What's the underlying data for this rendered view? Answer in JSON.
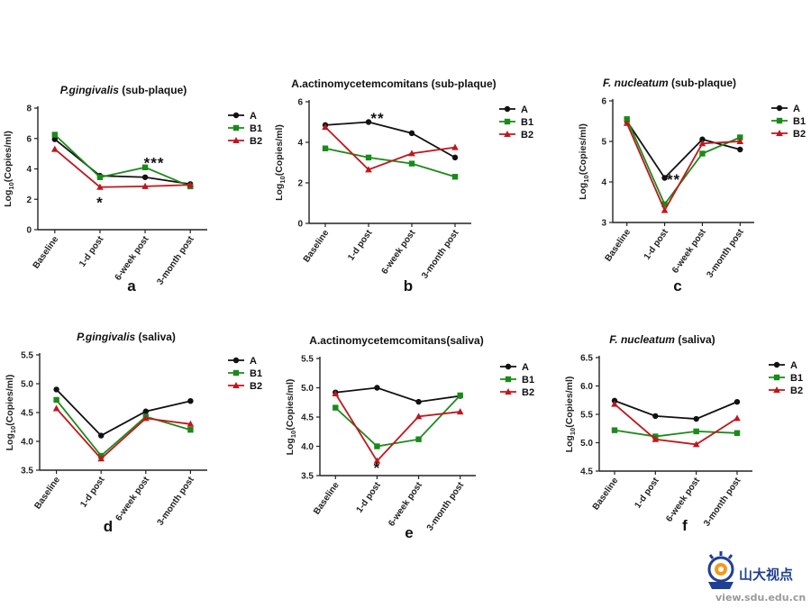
{
  "figure": {
    "legend_labels": [
      "A",
      "B1",
      "B2"
    ],
    "series_colors": {
      "A": "#111111",
      "B1": "#1a8a1a",
      "B2": "#c0161c"
    },
    "ylabel": "Log10(Copies/ml)",
    "ylabel_main": "Log",
    "ylabel_sub": "10",
    "ylabel_rest": "(Copies/ml)",
    "watermark": {
      "text": "山大视点",
      "url": "view.sdu.edu.cn"
    }
  },
  "chart_data": [
    {
      "type": "line",
      "panel_letter": "a",
      "title_italic": "P.gingivalis",
      "title_rest": " (sub-plaque)",
      "categories": [
        "Baseline",
        "1-d post",
        "6-week post",
        "3-month post"
      ],
      "ylim": [
        0,
        8
      ],
      "yticks": [
        "0",
        "2",
        "4",
        "6",
        "8"
      ],
      "series": [
        {
          "name": "A",
          "values": [
            5.95,
            3.55,
            3.45,
            3.0
          ]
        },
        {
          "name": "B1",
          "values": [
            6.25,
            3.45,
            4.1,
            2.85
          ]
        },
        {
          "name": "B2",
          "values": [
            5.3,
            2.8,
            2.85,
            2.95
          ]
        }
      ],
      "annotations": [
        {
          "text": "***",
          "category": "6-week post",
          "value": 4.35
        },
        {
          "text": "*",
          "category": "1-d post",
          "value": 1.75
        }
      ]
    },
    {
      "type": "line",
      "panel_letter": "b",
      "title_italic": "",
      "title_rest": "A.actinomycetemcomitans (sub-plaque)",
      "categories": [
        "Baseline",
        "1-d post",
        "6-week post",
        "3-month post"
      ],
      "ylim": [
        0,
        6
      ],
      "yticks": [
        "0",
        "2",
        "4",
        "6"
      ],
      "series": [
        {
          "name": "A",
          "values": [
            4.85,
            5.0,
            4.45,
            3.25
          ]
        },
        {
          "name": "B1",
          "values": [
            3.7,
            3.25,
            2.95,
            2.3
          ]
        },
        {
          "name": "B2",
          "values": [
            4.75,
            2.65,
            3.45,
            3.75
          ]
        }
      ],
      "annotations": [
        {
          "text": "**",
          "category": "1-d post",
          "value": 5.15
        }
      ]
    },
    {
      "type": "line",
      "panel_letter": "c",
      "title_italic": "F. nucleatum",
      "title_rest": " (sub-plaque)",
      "categories": [
        "Baseline",
        "1-d post",
        "6-week post",
        "3-month post"
      ],
      "ylim": [
        3,
        6
      ],
      "yticks": [
        "3",
        "4",
        "5",
        "6"
      ],
      "series": [
        {
          "name": "A",
          "values": [
            5.5,
            4.1,
            5.05,
            4.8
          ]
        },
        {
          "name": "B1",
          "values": [
            5.55,
            3.45,
            4.7,
            5.1
          ]
        },
        {
          "name": "B2",
          "values": [
            5.45,
            3.3,
            4.95,
            5.0
          ]
        }
      ],
      "annotations": [
        {
          "text": "**",
          "category": "1-d post",
          "value": 4.05
        }
      ]
    },
    {
      "type": "line",
      "panel_letter": "d",
      "title_italic": "P.gingivalis",
      "title_rest": " (saliva)",
      "categories": [
        "Baseline",
        "1-d post",
        "6-week post",
        "3-month post"
      ],
      "ylim": [
        3.5,
        5.5
      ],
      "yticks": [
        "3.5",
        "4.0",
        "4.5",
        "5.0",
        "5.5"
      ],
      "series": [
        {
          "name": "A",
          "values": [
            4.9,
            4.1,
            4.52,
            4.7
          ]
        },
        {
          "name": "B1",
          "values": [
            4.72,
            3.75,
            4.43,
            4.2
          ]
        },
        {
          "name": "B2",
          "values": [
            4.57,
            3.7,
            4.4,
            4.3
          ]
        }
      ],
      "annotations": []
    },
    {
      "type": "line",
      "panel_letter": "e",
      "title_italic": "",
      "title_rest": "A.actinomycetemcomitans(saliva)",
      "categories": [
        "Baseline",
        "1-d post",
        "6-week post",
        "3-month post"
      ],
      "ylim": [
        3.5,
        5.5
      ],
      "yticks": [
        "3.5",
        "4.0",
        "4.5",
        "5.0",
        "5.5"
      ],
      "series": [
        {
          "name": "A",
          "values": [
            4.92,
            5.0,
            4.76,
            4.86
          ]
        },
        {
          "name": "B1",
          "values": [
            4.66,
            4.0,
            4.12,
            4.87
          ]
        },
        {
          "name": "B2",
          "values": [
            4.9,
            3.75,
            4.51,
            4.59
          ]
        }
      ],
      "annotations": [
        {
          "text": "*",
          "category": "1-d post",
          "value": 3.62
        }
      ]
    },
    {
      "type": "line",
      "panel_letter": "f",
      "title_italic": "F. nucleatum",
      "title_rest": " (saliva)",
      "categories": [
        "Baseline",
        "1-d post",
        "6-week post",
        "3-month post"
      ],
      "ylim": [
        4.5,
        6.5
      ],
      "yticks": [
        "4.5",
        "5.0",
        "5.5",
        "6.0",
        "6.5"
      ],
      "series": [
        {
          "name": "A",
          "values": [
            5.74,
            5.47,
            5.42,
            5.72
          ]
        },
        {
          "name": "B1",
          "values": [
            5.22,
            5.11,
            5.2,
            5.17
          ]
        },
        {
          "name": "B2",
          "values": [
            5.68,
            5.06,
            4.97,
            5.43
          ]
        }
      ],
      "annotations": []
    }
  ]
}
